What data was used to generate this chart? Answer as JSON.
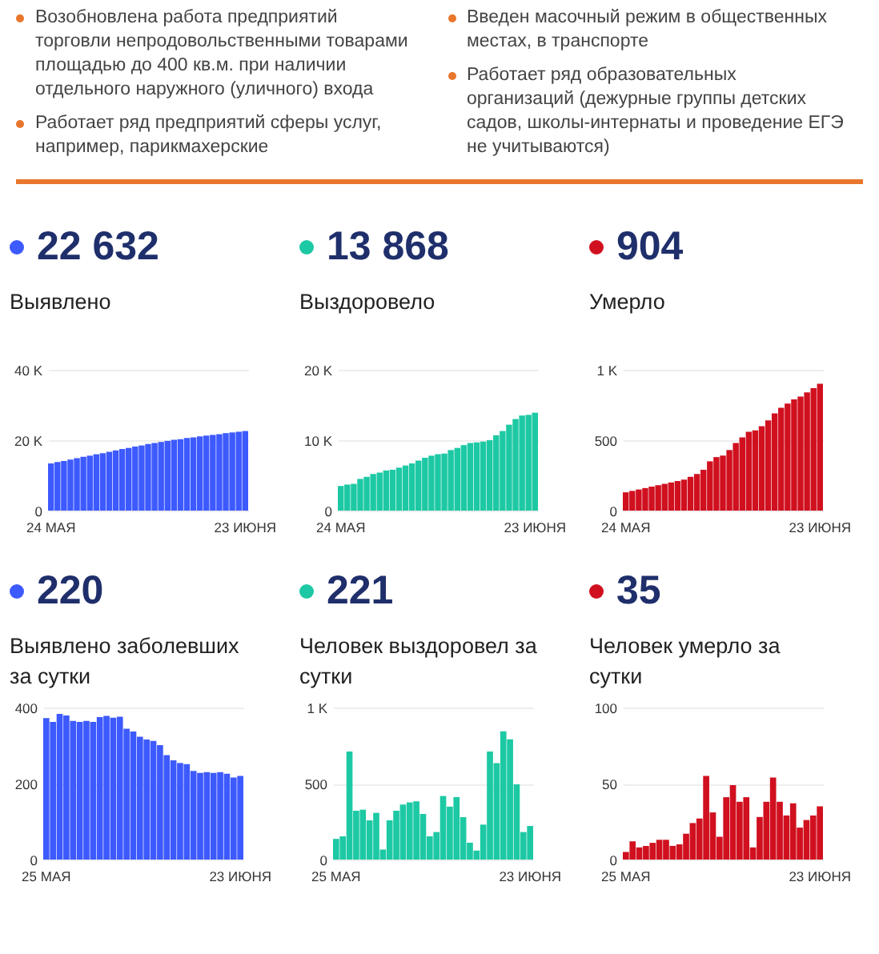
{
  "chart_data": [
    {
      "type": "other",
      "annotations": [
        "Возобновлена работа предприятий торговли непродовольственными товарами площадью до 400 кв.м. при наличии отдельного наружного (уличного) входа",
        "Работает ряд предприятий сферы услуг, например, парикмахерские",
        "Введен масочный режим в общественных местах, в транспорте",
        "Работает ряд образовательных организаций (дежурные группы детских садов, школы-интернаты и проведение ЕГЭ не учитываются)"
      ]
    },
    {
      "type": "bar",
      "title": "22 632",
      "subtitle": "Выявлено",
      "color": "#3d5afe",
      "grid": "y",
      "ylim": [
        0,
        40000
      ],
      "yticks": [
        {
          "value": 0,
          "label": "0"
        },
        {
          "value": 20000,
          "label": "20 K"
        },
        {
          "value": 40000,
          "label": "40 K"
        }
      ],
      "categories": [
        "24 МАЯ",
        null,
        null,
        null,
        null,
        null,
        null,
        null,
        null,
        null,
        null,
        null,
        null,
        null,
        null,
        null,
        null,
        null,
        null,
        null,
        null,
        null,
        null,
        null,
        null,
        null,
        null,
        null,
        null,
        null,
        "23 ИЮНЯ"
      ],
      "values": [
        13400,
        13800,
        14100,
        14500,
        14900,
        15300,
        15600,
        16000,
        16300,
        16700,
        17100,
        17500,
        17800,
        18200,
        18500,
        18900,
        19200,
        19500,
        19800,
        20100,
        20300,
        20600,
        20800,
        21100,
        21300,
        21500,
        21700,
        22000,
        22200,
        22400,
        22600
      ]
    },
    {
      "type": "bar",
      "title": "13 868",
      "subtitle": "Выздоровело",
      "color": "#1dc9a4",
      "grid": "y",
      "ylim": [
        0,
        20000
      ],
      "yticks": [
        {
          "value": 0,
          "label": "0"
        },
        {
          "value": 10000,
          "label": "10 K"
        },
        {
          "value": 20000,
          "label": "20 K"
        }
      ],
      "categories": [
        "24 МАЯ",
        null,
        null,
        null,
        null,
        null,
        null,
        null,
        null,
        null,
        null,
        null,
        null,
        null,
        null,
        null,
        null,
        null,
        null,
        null,
        null,
        null,
        null,
        null,
        null,
        null,
        null,
        null,
        null,
        null,
        "23 ИЮНЯ"
      ],
      "values": [
        3500,
        3700,
        3800,
        4500,
        4800,
        5200,
        5400,
        5700,
        5800,
        6100,
        6400,
        6700,
        7100,
        7500,
        7800,
        8000,
        8100,
        8600,
        8900,
        9300,
        9600,
        9700,
        9800,
        10000,
        10700,
        11300,
        12200,
        13000,
        13500,
        13600,
        13900
      ]
    },
    {
      "type": "bar",
      "title": "904",
      "subtitle": "Умерло",
      "color": "#d0101f",
      "grid": "y",
      "ylim": [
        0,
        1000
      ],
      "yticks": [
        {
          "value": 0,
          "label": "0"
        },
        500,
        {
          "value": 1000,
          "label": "1 K"
        }
      ],
      "categories": [
        "24 МАЯ",
        null,
        null,
        null,
        null,
        null,
        null,
        null,
        null,
        null,
        null,
        null,
        null,
        null,
        null,
        null,
        null,
        null,
        null,
        null,
        null,
        null,
        null,
        null,
        null,
        null,
        null,
        null,
        null,
        null,
        "23 ИЮНЯ"
      ],
      "values": [
        130,
        140,
        150,
        160,
        170,
        180,
        190,
        200,
        210,
        220,
        240,
        260,
        290,
        350,
        380,
        390,
        430,
        480,
        520,
        560,
        570,
        600,
        640,
        690,
        730,
        760,
        790,
        810,
        840,
        870,
        900
      ]
    },
    {
      "type": "bar",
      "title": "220",
      "subtitle": "Выявлено заболевших за сутки",
      "color": "#3d5afe",
      "grid": "y",
      "ylim": [
        0,
        400
      ],
      "yticks": [
        0,
        200,
        400
      ],
      "categories": [
        "25 МАЯ",
        null,
        null,
        null,
        null,
        null,
        null,
        null,
        null,
        null,
        null,
        null,
        null,
        null,
        null,
        null,
        null,
        null,
        null,
        null,
        null,
        null,
        null,
        null,
        null,
        null,
        null,
        null,
        null,
        "23 ИЮНЯ"
      ],
      "values": [
        372,
        362,
        383,
        379,
        365,
        362,
        365,
        362,
        375,
        378,
        373,
        376,
        344,
        337,
        323,
        316,
        312,
        301,
        275,
        261,
        254,
        251,
        233,
        228,
        230,
        228,
        230,
        226,
        216,
        220
      ]
    },
    {
      "type": "bar",
      "title": "221",
      "subtitle": "Человек выздоровел за сутки",
      "color": "#1dc9a4",
      "grid": "y",
      "ylim": [
        0,
        1000
      ],
      "yticks": [
        {
          "value": 0,
          "label": "0"
        },
        500,
        {
          "value": 1000,
          "label": "1 K"
        }
      ],
      "categories": [
        "25 МАЯ",
        null,
        null,
        null,
        null,
        null,
        null,
        null,
        null,
        null,
        null,
        null,
        null,
        null,
        null,
        null,
        null,
        null,
        null,
        null,
        null,
        null,
        null,
        null,
        null,
        null,
        null,
        null,
        null,
        "23 ИЮНЯ"
      ],
      "values": [
        136,
        153,
        711,
        321,
        328,
        258,
        307,
        66,
        258,
        321,
        362,
        376,
        383,
        300,
        153,
        181,
        418,
        348,
        411,
        279,
        111,
        59,
        230,
        711,
        634,
        843,
        791,
        495,
        181,
        221
      ]
    },
    {
      "type": "bar",
      "title": "35",
      "subtitle": "Человек умерло за сутки",
      "color": "#d0101f",
      "grid": "y",
      "ylim": [
        0,
        100
      ],
      "yticks": [
        0,
        50,
        100
      ],
      "categories": [
        "25 МАЯ",
        null,
        null,
        null,
        null,
        null,
        null,
        null,
        null,
        null,
        null,
        null,
        null,
        null,
        null,
        null,
        null,
        null,
        null,
        null,
        null,
        null,
        null,
        null,
        null,
        null,
        null,
        null,
        null,
        "23 ИЮНЯ"
      ],
      "values": [
        5,
        12,
        8,
        9,
        11,
        13,
        13,
        9,
        10,
        17,
        24,
        27,
        55,
        31,
        15,
        41,
        49,
        38,
        41,
        8,
        28,
        38,
        54,
        38,
        29,
        37,
        21,
        26,
        29,
        35
      ]
    }
  ]
}
